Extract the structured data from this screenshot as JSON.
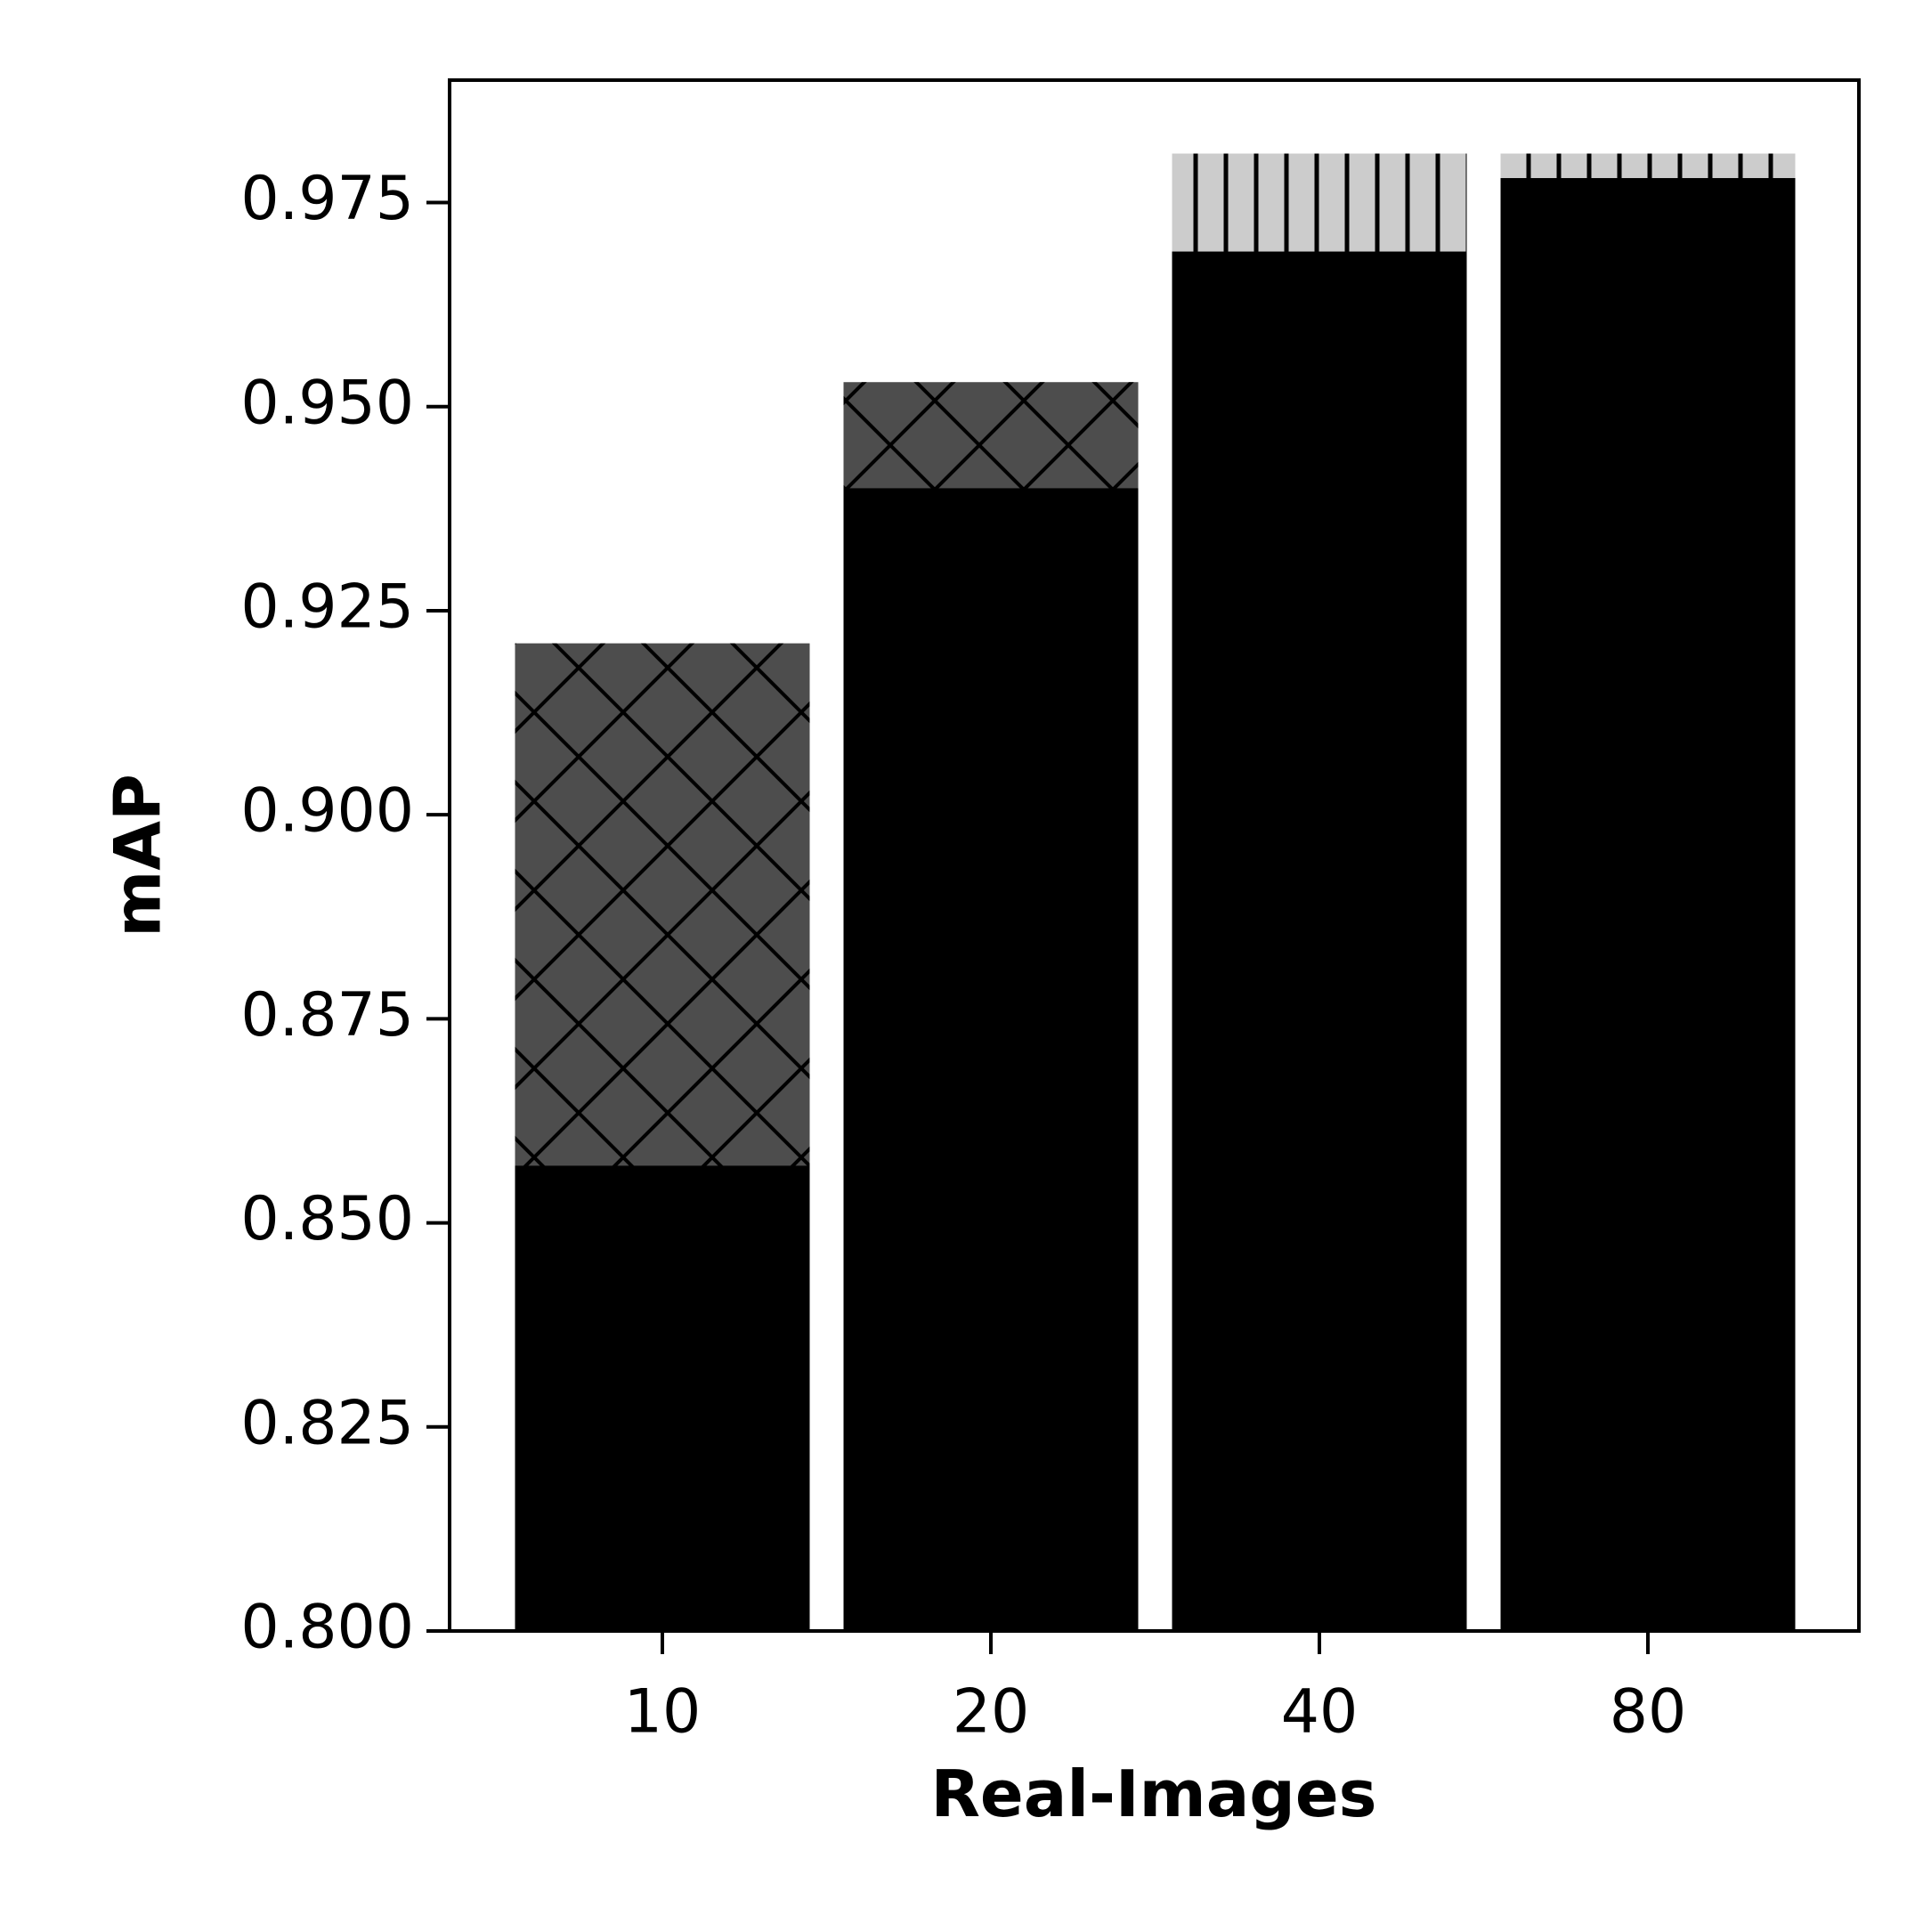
{
  "chart_data": {
    "type": "bar",
    "xlabel": "Real-Images",
    "ylabel": "mAP",
    "categories": [
      "10",
      "20",
      "40",
      "80"
    ],
    "series": [
      {
        "color": "#000000",
        "values": [
          0.857,
          0.94,
          0.969,
          0.978
        ]
      },
      {
        "colors": [
          "#4d4d4d",
          "#4d4d4d",
          "#cccccc",
          "#cccccc"
        ],
        "hatches": [
          "x",
          "x",
          "|",
          "|"
        ],
        "values": [
          0.921,
          0.953,
          0.981,
          0.981
        ]
      }
    ],
    "ylim": [
      0.8,
      0.99
    ],
    "yticks": [
      {
        "value": 0.8,
        "label": "0.800"
      },
      {
        "value": 0.825,
        "label": "0.825"
      },
      {
        "value": 0.85,
        "label": "0.850"
      },
      {
        "value": 0.875,
        "label": "0.875"
      },
      {
        "value": 0.9,
        "label": "0.900"
      },
      {
        "value": 0.925,
        "label": "0.925"
      },
      {
        "value": 0.95,
        "label": "0.950"
      },
      {
        "value": 0.975,
        "label": "0.975"
      }
    ]
  }
}
